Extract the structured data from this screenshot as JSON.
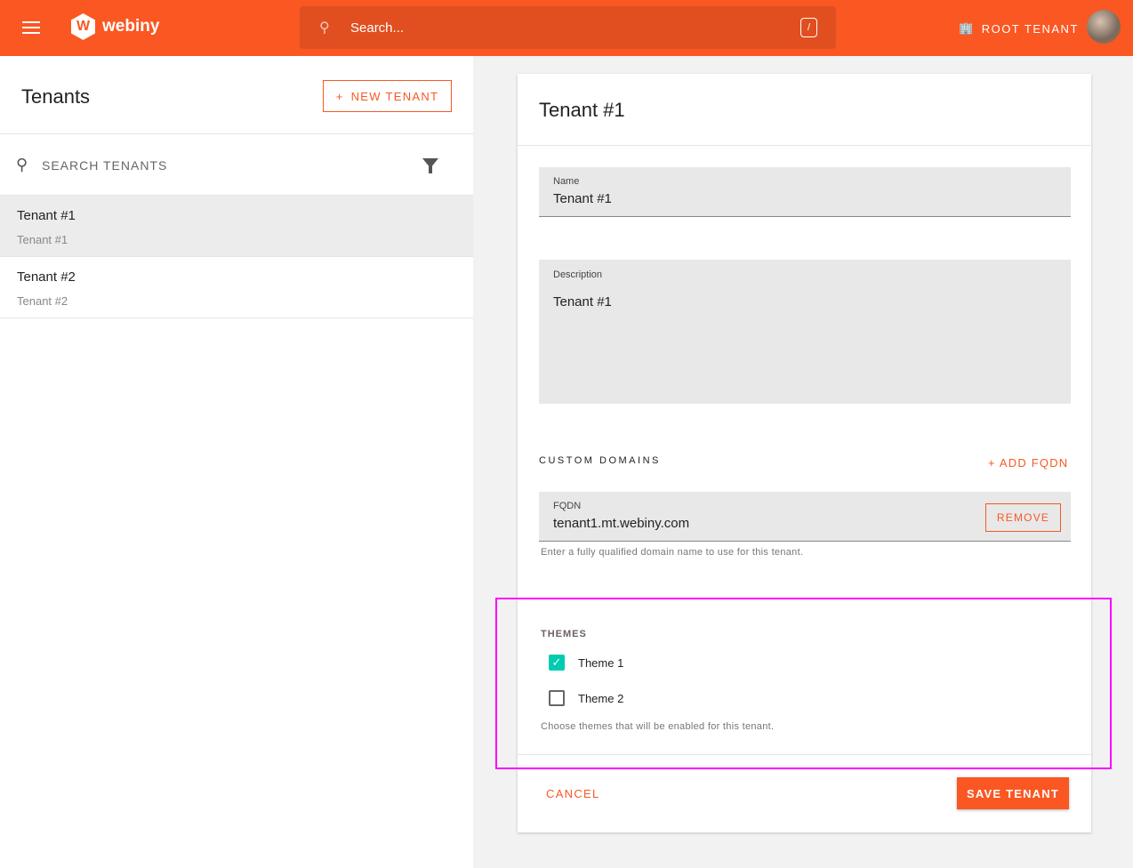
{
  "header": {
    "logo_text": "webiny",
    "search_placeholder": "Search...",
    "search_shortcut": "/",
    "tenant_label": "ROOT TENANT"
  },
  "sidebar": {
    "title": "Tenants",
    "new_button": "NEW TENANT",
    "search_label": "SEARCH TENANTS",
    "items": [
      {
        "title": "Tenant #1",
        "subtitle": "Tenant #1",
        "selected": true
      },
      {
        "title": "Tenant #2",
        "subtitle": "Tenant #2",
        "selected": false
      }
    ]
  },
  "form": {
    "title": "Tenant #1",
    "name": {
      "label": "Name",
      "value": "Tenant #1"
    },
    "description": {
      "label": "Description",
      "value": "Tenant #1"
    },
    "custom_domains": {
      "label": "CUSTOM DOMAINS",
      "add_label": "+ ADD FQDN",
      "fqdn_label": "FQDN",
      "fqdn_value": "tenant1.mt.webiny.com",
      "remove_label": "REMOVE",
      "help": "Enter a fully qualified domain name to use for this tenant."
    },
    "themes": {
      "label": "THEMES",
      "options": [
        {
          "label": "Theme 1",
          "checked": true
        },
        {
          "label": "Theme 2",
          "checked": false
        }
      ],
      "help": "Choose themes that will be enabled for this tenant."
    },
    "cancel": "CANCEL",
    "save": "SAVE TENANT"
  },
  "colors": {
    "brand": "#fa5723",
    "checkbox": "#00ccb0",
    "highlight": "#ff00ff"
  }
}
